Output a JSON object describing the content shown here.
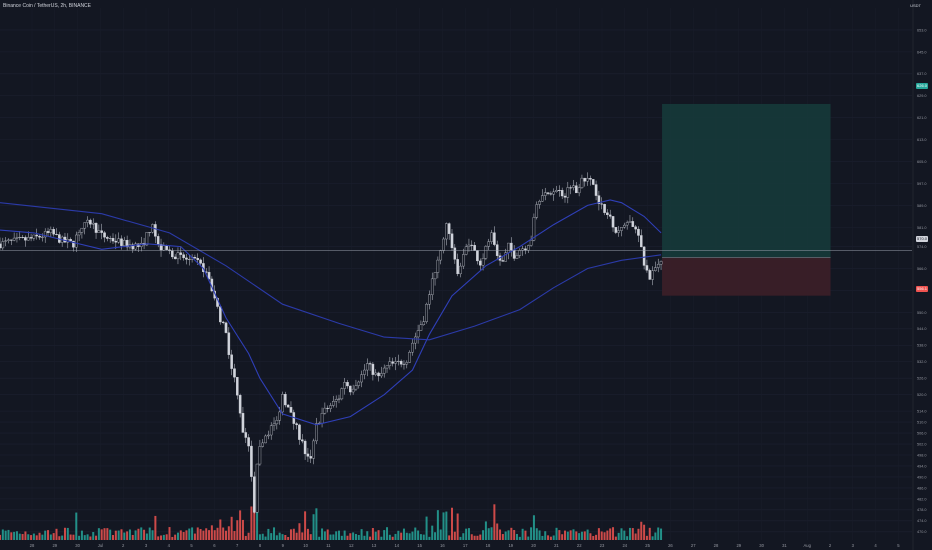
{
  "header": {
    "title": "Binance Coin / TetherUS, 2h, BINANCE",
    "currency": "USDT"
  },
  "price_badges": {
    "take_profit": "626.0",
    "stop_loss": "556.1",
    "last": "570.0"
  },
  "colors": {
    "background": "#131722",
    "up": "#d1d4dc",
    "down": "#d1d4dc",
    "volume_up": "#26a69a",
    "volume_down": "#ef5350",
    "ma_fast": "#2f3fb8",
    "ma_slow": "#2b3aa8",
    "profit_zone": "#163a3a",
    "loss_zone": "#3a1f28"
  },
  "chart_data": {
    "type": "candlestick",
    "y_ticks": [
      653.0,
      645.0,
      637.0,
      629.0,
      621.0,
      613.0,
      605.0,
      597.0,
      589.0,
      581.0,
      574.0,
      566.0,
      558.0,
      550.0,
      544.0,
      538.0,
      532.0,
      526.0,
      520.0,
      514.0,
      510.0,
      506.0,
      502.0,
      498.0,
      494.0,
      490.0,
      486.0,
      482.0,
      478.0,
      474.0,
      470.0
    ],
    "ylim": [
      467,
      661
    ],
    "x_ticks": [
      "28",
      "29",
      "30",
      "Jul",
      "2",
      "3",
      "4",
      "5",
      "6",
      "7",
      "8",
      "9",
      "10",
      "11",
      "12",
      "13",
      "14",
      "15",
      "16",
      "17",
      "18",
      "19",
      "20",
      "21",
      "22",
      "23",
      "24",
      "25",
      "26",
      "27",
      "28",
      "29",
      "30",
      "31",
      "Aug",
      "2",
      "3",
      "4",
      "5",
      "6"
    ],
    "price_path": [
      [
        0,
        575
      ],
      [
        6,
        577
      ],
      [
        9,
        579
      ],
      [
        11,
        576
      ],
      [
        13,
        575
      ],
      [
        14,
        580
      ],
      [
        16,
        583
      ],
      [
        18,
        578
      ],
      [
        22,
        575
      ],
      [
        25,
        574
      ],
      [
        26,
        578
      ],
      [
        27,
        583
      ],
      [
        28,
        574
      ],
      [
        32,
        570
      ],
      [
        35,
        568
      ],
      [
        36,
        566
      ],
      [
        37,
        562
      ],
      [
        38,
        554
      ],
      [
        40,
        542
      ],
      [
        41,
        530
      ],
      [
        42,
        521
      ],
      [
        43,
        507
      ],
      [
        44,
        500
      ],
      [
        45,
        478
      ],
      [
        45.4,
        492
      ],
      [
        46,
        500
      ],
      [
        47,
        505
      ],
      [
        48,
        508
      ],
      [
        49,
        510
      ],
      [
        50,
        520
      ],
      [
        51,
        515
      ],
      [
        52,
        510
      ],
      [
        53,
        505
      ],
      [
        54,
        499
      ],
      [
        55,
        496
      ],
      [
        56,
        509
      ],
      [
        57,
        513
      ],
      [
        58,
        515
      ],
      [
        60,
        519
      ],
      [
        61,
        525
      ],
      [
        62,
        522
      ],
      [
        64,
        527
      ],
      [
        65,
        531
      ],
      [
        67,
        526
      ],
      [
        68,
        529
      ],
      [
        69,
        531
      ],
      [
        70,
        531
      ],
      [
        72,
        533
      ],
      [
        73,
        539
      ],
      [
        75,
        548
      ],
      [
        76,
        557
      ],
      [
        78,
        574
      ],
      [
        79,
        582
      ],
      [
        80,
        574
      ],
      [
        81,
        565
      ],
      [
        82,
        571
      ],
      [
        83,
        576
      ],
      [
        84,
        572
      ],
      [
        85,
        568
      ],
      [
        86,
        573
      ],
      [
        87,
        578
      ],
      [
        88,
        570
      ],
      [
        89,
        568
      ],
      [
        90,
        574
      ],
      [
        91,
        571
      ],
      [
        92,
        573
      ],
      [
        93,
        574
      ],
      [
        94,
        577
      ],
      [
        95,
        590
      ],
      [
        96,
        594
      ],
      [
        97,
        592
      ],
      [
        98,
        595
      ],
      [
        100,
        593
      ],
      [
        101,
        597
      ],
      [
        102,
        594
      ],
      [
        103,
        600
      ],
      [
        104,
        598
      ],
      [
        105,
        597
      ],
      [
        106,
        591
      ],
      [
        107,
        586
      ],
      [
        108,
        585
      ],
      [
        109,
        580
      ],
      [
        110,
        580
      ],
      [
        111,
        584
      ],
      [
        112,
        582
      ],
      [
        113,
        578
      ],
      [
        114,
        567
      ],
      [
        115,
        563
      ],
      [
        116,
        566
      ],
      [
        117,
        570
      ]
    ],
    "ma_fast": [
      [
        0,
        580
      ],
      [
        6,
        579
      ],
      [
        12,
        576
      ],
      [
        18,
        573
      ],
      [
        26,
        575
      ],
      [
        32,
        574
      ],
      [
        36,
        566
      ],
      [
        40,
        548
      ],
      [
        44,
        535
      ],
      [
        46,
        526
      ],
      [
        50,
        513
      ],
      [
        56,
        509
      ],
      [
        62,
        512
      ],
      [
        68,
        520
      ],
      [
        73,
        529
      ],
      [
        76,
        542
      ],
      [
        80,
        556
      ],
      [
        86,
        567
      ],
      [
        92,
        574
      ],
      [
        98,
        582
      ],
      [
        104,
        589
      ],
      [
        108,
        591
      ],
      [
        110,
        590
      ],
      [
        114,
        585
      ],
      [
        117,
        579
      ]
    ],
    "ma_slow": [
      [
        0,
        590
      ],
      [
        18,
        586
      ],
      [
        30,
        579
      ],
      [
        40,
        567
      ],
      [
        50,
        553
      ],
      [
        60,
        546
      ],
      [
        68,
        541
      ],
      [
        76,
        540
      ],
      [
        84,
        545
      ],
      [
        92,
        551
      ],
      [
        98,
        559
      ],
      [
        104,
        566
      ],
      [
        110,
        569
      ],
      [
        117,
        571
      ]
    ],
    "horizontal_line": 572.6,
    "position": {
      "entry": 570.0,
      "take_profit": 626.0,
      "stop_loss": 556.1,
      "x_from": 117,
      "x_to": 147
    }
  }
}
